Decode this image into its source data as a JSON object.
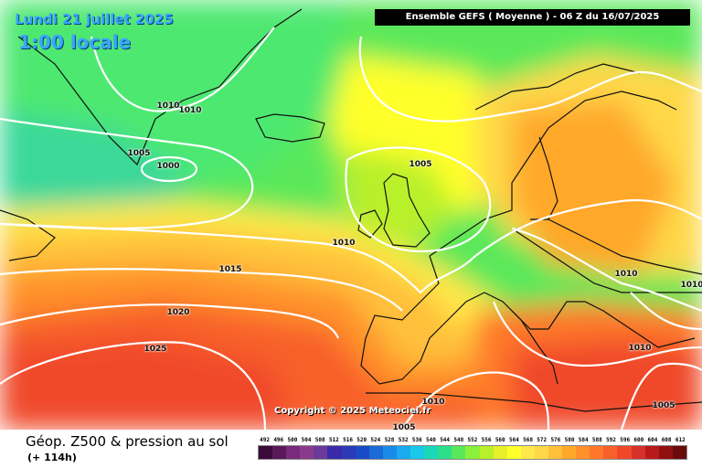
{
  "header": {
    "date": "Lundi 21 juillet 2025",
    "time": "1:00 locale",
    "model_info": "Ensemble GEFS  ( Moyenne )  -  06 Z du 16/07/2025"
  },
  "copyright": "Copyright © 2025 Meteociel.fr",
  "footer": {
    "title": "Géop. Z500 & pression au sol",
    "subtitle": "(+ 114h)"
  },
  "isobar_labels": [
    "1010",
    "1010",
    "1005",
    "1000",
    "1005",
    "1010",
    "1015",
    "1020",
    "1025",
    "1010",
    "1010",
    "1010",
    "1010",
    "1005",
    "1005"
  ],
  "scale": {
    "values": [
      "492",
      "496",
      "500",
      "504",
      "508",
      "512",
      "516",
      "520",
      "524",
      "528",
      "532",
      "536",
      "540",
      "544",
      "548",
      "552",
      "556",
      "560",
      "564",
      "568",
      "572",
      "576",
      "580",
      "584",
      "588",
      "592",
      "596",
      "600",
      "604",
      "608",
      "612"
    ],
    "colors": [
      "#3a0a3a",
      "#5a1a5a",
      "#7a2a7a",
      "#8a3a8a",
      "#6a3a9a",
      "#3a2aaa",
      "#2a3ab8",
      "#1a4ac8",
      "#1a6ad8",
      "#1a8ae8",
      "#1aaaf0",
      "#1ac8e8",
      "#1ad8b8",
      "#2ae08a",
      "#5ae85a",
      "#8af03a",
      "#b8f02a",
      "#e8f02a",
      "#ffff2a",
      "#ffe84a",
      "#ffd84a",
      "#ffc03a",
      "#ffa82a",
      "#ff902a",
      "#ff782a",
      "#f8602a",
      "#f0482a",
      "#d8302a",
      "#b81a1a",
      "#901010",
      "#6a0a0a"
    ]
  },
  "colors": {
    "isobar": "#ffffff",
    "land_outline": "#111111"
  }
}
